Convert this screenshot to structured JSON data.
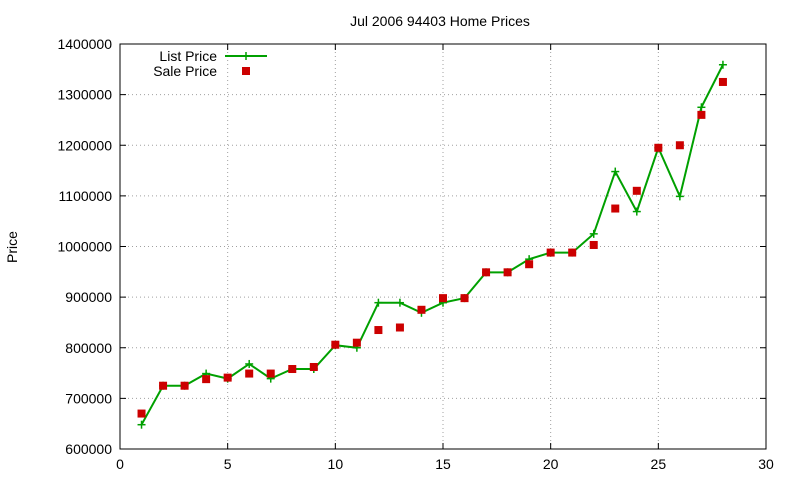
{
  "chart_data": {
    "type": "line",
    "title": "Jul 2006 94403 Home Prices",
    "xlabel": "",
    "ylabel": "Price",
    "xlim": [
      0,
      30
    ],
    "ylim": [
      600000,
      1400000
    ],
    "x_ticks": [
      0,
      5,
      10,
      15,
      20,
      25,
      30
    ],
    "y_ticks": [
      600000,
      700000,
      800000,
      900000,
      1000000,
      1100000,
      1200000,
      1300000,
      1400000
    ],
    "grid": true,
    "legend_position": "top-left",
    "x": [
      1,
      2,
      3,
      4,
      5,
      6,
      7,
      8,
      9,
      10,
      11,
      12,
      13,
      14,
      15,
      16,
      17,
      18,
      19,
      20,
      21,
      22,
      23,
      24,
      25,
      26,
      27,
      28
    ],
    "series": [
      {
        "name": "List Price",
        "style": "lines-and-plus-points",
        "color": "#00a000",
        "values": [
          648000,
          725000,
          725000,
          749000,
          739000,
          768000,
          739000,
          758000,
          758000,
          805000,
          800000,
          889000,
          889000,
          869000,
          889000,
          898000,
          949000,
          949000,
          975000,
          988000,
          988000,
          1025000,
          1148000,
          1069000,
          1195000,
          1099000,
          1275000,
          1359000
        ]
      },
      {
        "name": "Sale Price",
        "style": "square-points",
        "color": "#cc0000",
        "values": [
          670000,
          725000,
          725000,
          738000,
          741000,
          749000,
          749000,
          758000,
          762000,
          806000,
          810000,
          835000,
          840000,
          875000,
          898000,
          898000,
          949000,
          949000,
          965000,
          988000,
          988000,
          1003000,
          1075000,
          1110000,
          1195000,
          1200000,
          1260000,
          1325000
        ]
      }
    ]
  }
}
